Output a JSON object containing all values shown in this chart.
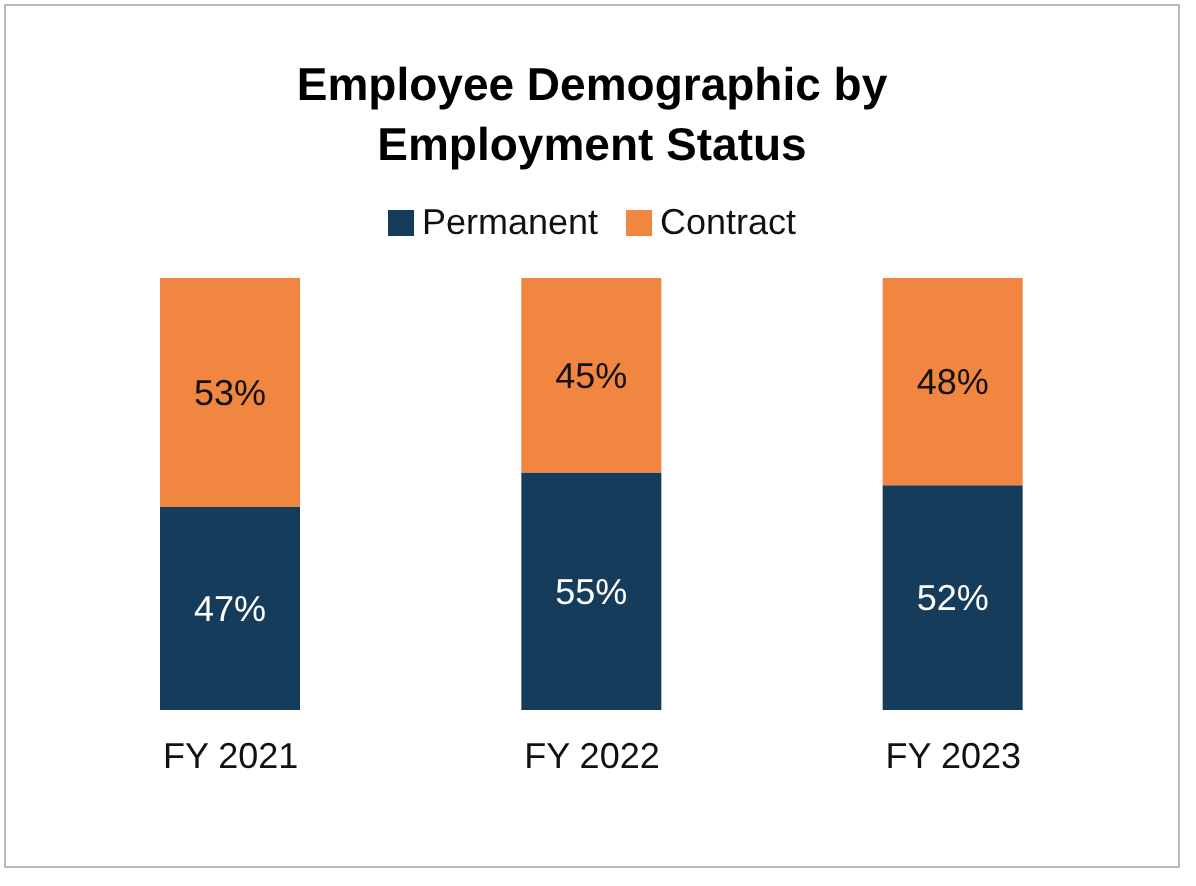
{
  "chart_data": {
    "type": "bar",
    "title": "Employee Demographic by Employment Status",
    "categories": [
      "FY 2021",
      "FY 2022",
      "FY 2023"
    ],
    "stacked": true,
    "legend": "top",
    "grid": false,
    "series": [
      {
        "name": "Permanent",
        "color": "#153d5b",
        "values": [
          47,
          55,
          52
        ],
        "value_labels": [
          "47%",
          "55%",
          "52%"
        ]
      },
      {
        "name": "Contract",
        "color": "#f0863f",
        "values": [
          53,
          45,
          48
        ],
        "value_labels": [
          "53%",
          "45%",
          "48%"
        ]
      }
    ]
  }
}
